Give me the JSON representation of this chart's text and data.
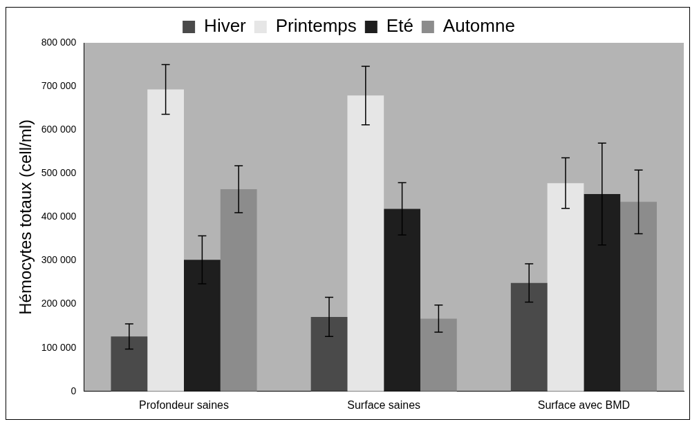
{
  "chart_data": {
    "type": "bar",
    "ylabel": "Hémocytes totaux (cell/ml)",
    "categories": [
      "Profondeur saines",
      "Surface saines",
      "Surface avec BMD"
    ],
    "series": [
      {
        "name": "Hiver",
        "color": "#4a4a4a",
        "values": [
          126000,
          171000,
          249000
        ],
        "errors": [
          29000,
          45000,
          44000
        ]
      },
      {
        "name": "Printemps",
        "color": "#e6e6e6",
        "values": [
          693000,
          679000,
          478000
        ],
        "errors": [
          57000,
          67000,
          58000
        ]
      },
      {
        "name": "Eté",
        "color": "#1e1e1e",
        "values": [
          302000,
          419000,
          453000
        ],
        "errors": [
          55000,
          60000,
          117000
        ]
      },
      {
        "name": "Automne",
        "color": "#8c8c8c",
        "values": [
          464000,
          167000,
          435000
        ],
        "errors": [
          54000,
          31000,
          73000
        ]
      }
    ],
    "ylim": [
      0,
      800000
    ],
    "yticks": [
      0,
      {
        "value": 100000,
        "label": "100 000"
      },
      {
        "value": 200000,
        "label": "200 000"
      },
      {
        "value": 300000,
        "label": "300 000"
      },
      {
        "value": 400000,
        "label": "400 000"
      },
      {
        "value": 500000,
        "label": "500 000"
      },
      {
        "value": 600000,
        "label": "600 000"
      },
      {
        "value": 700000,
        "label": "700 000"
      },
      {
        "value": 800000,
        "label": "800 000"
      }
    ],
    "grid": false,
    "legend": "top"
  }
}
